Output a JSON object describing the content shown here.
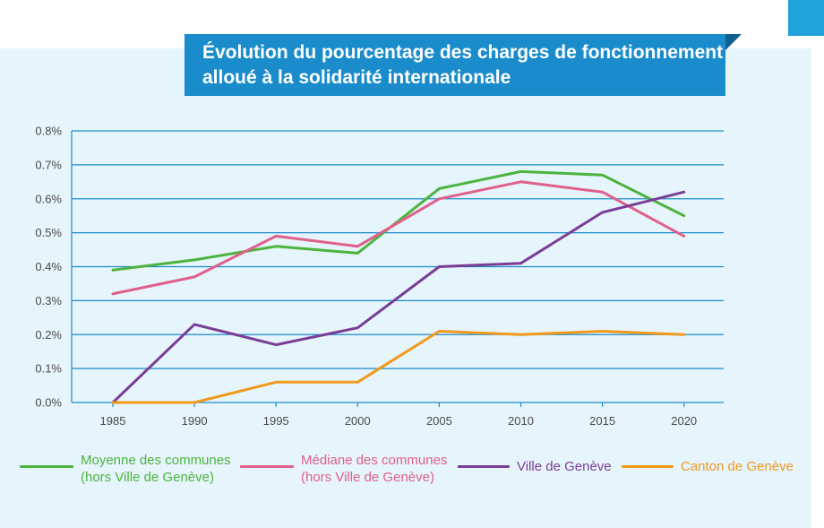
{
  "title": {
    "line1": "Évolution du pourcentage des charges de fonctionnement",
    "line2": "alloué à la solidarité internationale"
  },
  "colors": {
    "panel_bg": "#e6f4fb",
    "title_bg": "#1b8ccb",
    "grid": "#1b8ccb",
    "green": "#4cb33e",
    "pink": "#e0608a",
    "purple": "#7a3d96",
    "orange": "#f09a1c"
  },
  "chart_data": {
    "type": "line",
    "title": "Évolution du pourcentage des charges de fonctionnement alloué à la solidarité internationale",
    "xlabel": "",
    "ylabel": "",
    "x": [
      "1985",
      "1990",
      "1995",
      "2000",
      "2005",
      "2010",
      "2015",
      "2020"
    ],
    "ylim": [
      0,
      0.8
    ],
    "yticks": [
      "0.0%",
      "0.1%",
      "0.2%",
      "0.3%",
      "0.4%",
      "0.5%",
      "0.6%",
      "0.7%",
      "0.8%"
    ],
    "grid": true,
    "legend_position": "bottom",
    "series": [
      {
        "name": "Moyenne des communes (hors Ville de Genève)",
        "color": "#4cb33e",
        "values": [
          0.39,
          0.42,
          0.46,
          0.44,
          0.63,
          0.68,
          0.67,
          0.55
        ]
      },
      {
        "name": "Médiane des communes (hors Ville de Genève)",
        "color": "#e0608a",
        "values": [
          0.32,
          0.37,
          0.49,
          0.46,
          0.6,
          0.65,
          0.62,
          0.49
        ]
      },
      {
        "name": "Ville de Genève",
        "color": "#7a3d96",
        "values": [
          0.0,
          0.23,
          0.17,
          0.22,
          0.4,
          0.41,
          0.56,
          0.62
        ]
      },
      {
        "name": "Canton de Genève",
        "color": "#f09a1c",
        "values": [
          0.0,
          0.0,
          0.06,
          0.06,
          0.21,
          0.2,
          0.21,
          0.2
        ]
      }
    ]
  },
  "legend": [
    {
      "line1": "Moyenne des communes",
      "line2": "(hors Ville de Genève)",
      "color": "#4cb33e"
    },
    {
      "line1": "Médiane des communes",
      "line2": "(hors Ville de Genève)",
      "color": "#e0608a"
    },
    {
      "line1": "Ville de Genève",
      "line2": "",
      "color": "#7a3d96"
    },
    {
      "line1": "Canton de Genève",
      "line2": "",
      "color": "#f09a1c"
    }
  ]
}
